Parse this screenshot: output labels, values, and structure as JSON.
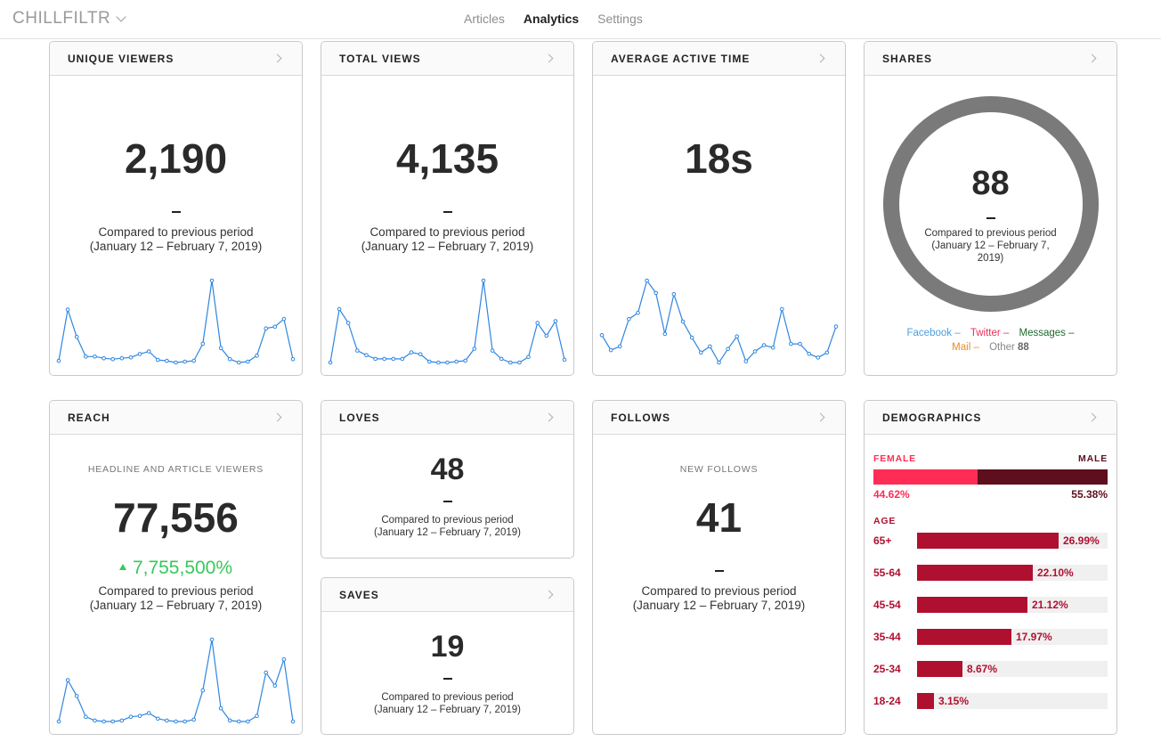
{
  "app": {
    "brand": "CHILLFILTR"
  },
  "nav": {
    "tabs": [
      {
        "label": "Articles"
      },
      {
        "label": "Analytics"
      },
      {
        "label": "Settings"
      }
    ],
    "active": "Analytics"
  },
  "compare_line1": "Compared to previous period",
  "compare_line2": "(January 12 – February 7, 2019)",
  "compare_line2_wrap_a": "(January 12 – February 7,",
  "compare_line2_wrap_b": "2019)",
  "cards": {
    "unique_viewers": {
      "title": "UNIQUE VIEWERS",
      "value": "2,190"
    },
    "total_views": {
      "title": "TOTAL VIEWS",
      "value": "4,135"
    },
    "avg_active_time": {
      "title": "AVERAGE ACTIVE TIME",
      "value": "18s"
    },
    "shares": {
      "title": "SHARES",
      "value": "88",
      "legend": [
        {
          "label": "Facebook",
          "color": "#4a9ee0"
        },
        {
          "label": "Twitter",
          "color": "#e8305a"
        },
        {
          "label": "Messages",
          "color": "#1d6b2a"
        },
        {
          "label": "Mail",
          "color": "#f08a1c"
        },
        {
          "label": "Other",
          "value": "88",
          "color": "#888888"
        }
      ]
    },
    "reach": {
      "title": "REACH",
      "sublabel": "HEADLINE AND ARTICLE VIEWERS",
      "value": "77,556",
      "change": "7,755,500%"
    },
    "loves": {
      "title": "LOVES",
      "value": "48"
    },
    "saves": {
      "title": "SAVES",
      "value": "19"
    },
    "follows": {
      "title": "FOLLOWS",
      "sublabel": "NEW FOLLOWS",
      "value": "41"
    },
    "demographics": {
      "title": "DEMOGRAPHICS",
      "female_label": "FEMALE",
      "male_label": "MALE",
      "female_pct": "44.62%",
      "male_pct": "55.38%",
      "female_value": 44.62,
      "age_label": "AGE",
      "ages": [
        {
          "label": "65+",
          "pct": "26.99%",
          "value": 26.99
        },
        {
          "label": "55-64",
          "pct": "22.10%",
          "value": 22.1
        },
        {
          "label": "45-54",
          "pct": "21.12%",
          "value": 21.12
        },
        {
          "label": "35-44",
          "pct": "17.97%",
          "value": 17.97
        },
        {
          "label": "25-34",
          "pct": "8.67%",
          "value": 8.67
        },
        {
          "label": "18-24",
          "pct": "3.15%",
          "value": 3.15
        }
      ],
      "colors": {
        "female": "#ff2d55",
        "male": "#5e0f1d",
        "age": "#b01030"
      }
    }
  },
  "sparklines": {
    "unique_viewers": [
      2,
      62,
      30,
      7,
      7,
      5,
      4,
      5,
      6,
      10,
      13,
      3,
      2,
      0,
      1,
      2,
      22,
      96,
      17,
      4,
      0,
      1,
      8,
      40,
      42,
      51,
      4
    ],
    "total_views": [
      2,
      60,
      45,
      15,
      10,
      6,
      6,
      6,
      6,
      13,
      11,
      3,
      2,
      2,
      3,
      4,
      17,
      91,
      15,
      6,
      2,
      2,
      8,
      45,
      31,
      47,
      5
    ],
    "avg_active_time": [
      55,
      43,
      46,
      68,
      73,
      99,
      89,
      56,
      88,
      66,
      53,
      41,
      46,
      33,
      44,
      54,
      34,
      42,
      47,
      45,
      76,
      48,
      48,
      40,
      37,
      41,
      62
    ],
    "reach": [
      1,
      45,
      28,
      6,
      2,
      1,
      1,
      2,
      6,
      7,
      10,
      4,
      2,
      1,
      1,
      3,
      34,
      88,
      15,
      2,
      1,
      1,
      7,
      53,
      39,
      67,
      1
    ]
  }
}
